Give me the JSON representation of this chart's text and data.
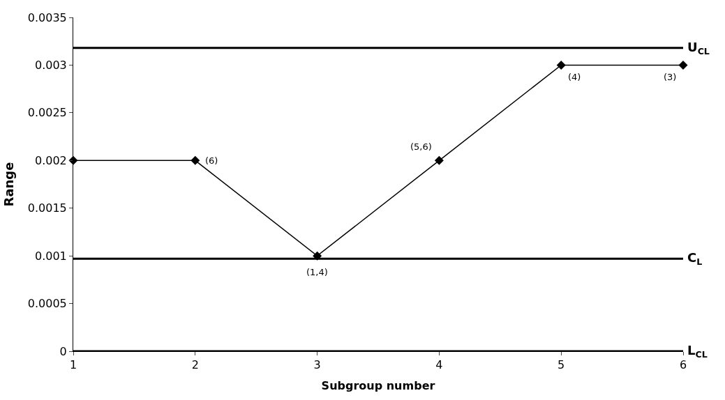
{
  "chart_data": {
    "type": "line",
    "xlabel": "Subgroup number",
    "ylabel": "Range",
    "x": [
      1,
      2,
      3,
      4,
      5,
      6
    ],
    "series": [
      {
        "color": "#000000",
        "values": [
          0.002,
          0.002,
          0.001,
          0.002,
          0.003,
          0.003
        ]
      }
    ],
    "xlim": [
      1,
      6
    ],
    "xticks": [
      1,
      2,
      3,
      4,
      5,
      6
    ],
    "ylim": [
      0,
      0.0035
    ],
    "yticks": [
      0,
      0.0005,
      0.001,
      0.0015,
      0.002,
      0.0025,
      0.003,
      0.0035
    ],
    "ref_lines": [
      {
        "axis": "y",
        "value": 0.00318,
        "label": "U$_{CL}$",
        "color": "#000000"
      },
      {
        "axis": "y",
        "value": 0.00097,
        "label": "C$_{L}$",
        "color": "#000000"
      },
      {
        "axis": "y",
        "value": 0,
        "label": "L$_{CL}$",
        "color": "#000000"
      }
    ],
    "annotations": [
      {
        "text": "(6)",
        "x": 2,
        "y": 0.002
      },
      {
        "text": "(1,4)",
        "x": 3,
        "y": 0.001
      },
      {
        "text": "(5,6)",
        "x": 4,
        "y": 0.002
      },
      {
        "text": "(4)",
        "x": 5,
        "y": 0.003
      },
      {
        "text": "(3)",
        "x": 6,
        "y": 0.003
      }
    ],
    "marker": "diamond",
    "line_style": "solid"
  }
}
